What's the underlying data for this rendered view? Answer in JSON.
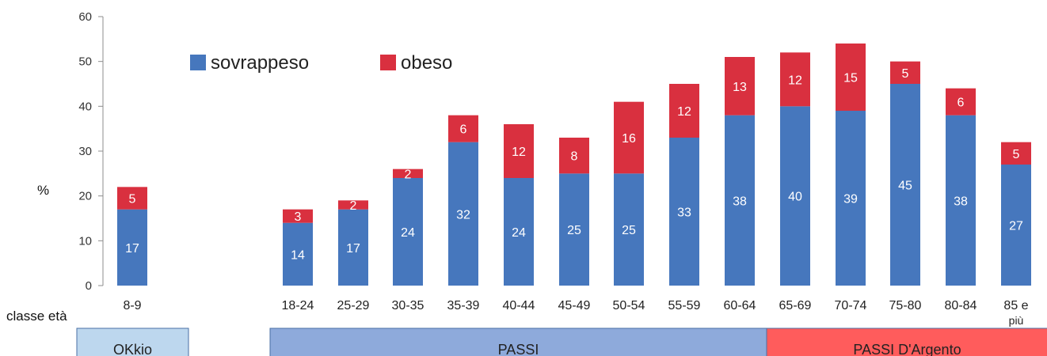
{
  "chart_data": {
    "type": "bar",
    "stacked": true,
    "title": "",
    "ylabel": "%",
    "xlabel": "classe età",
    "ylim": [
      0,
      60
    ],
    "yticks": [
      0,
      10,
      20,
      30,
      40,
      50,
      60
    ],
    "grid": false,
    "legend_position": "top-left",
    "categories": [
      "8-9",
      "18-24",
      "25-29",
      "30-35",
      "35-39",
      "40-44",
      "45-49",
      "50-54",
      "55-59",
      "60-64",
      "65-69",
      "70-74",
      "75-80",
      "80-84",
      "85 e più"
    ],
    "category_lines": [
      [
        "8-9"
      ],
      [
        "18-24"
      ],
      [
        "25-29"
      ],
      [
        "30-35"
      ],
      [
        "35-39"
      ],
      [
        "40-44"
      ],
      [
        "45-49"
      ],
      [
        "50-54"
      ],
      [
        "55-59"
      ],
      [
        "60-64"
      ],
      [
        "65-69"
      ],
      [
        "70-74"
      ],
      [
        "75-80"
      ],
      [
        "80-84"
      ],
      [
        "85 e",
        "più"
      ]
    ],
    "series": [
      {
        "name": "sovrappeso",
        "color": "#4677BD",
        "values": [
          17,
          14,
          17,
          24,
          32,
          24,
          25,
          25,
          33,
          38,
          40,
          39,
          45,
          38,
          27
        ]
      },
      {
        "name": "obeso",
        "color": "#D9303F",
        "values": [
          5,
          3,
          2,
          2,
          6,
          12,
          8,
          16,
          12,
          13,
          12,
          15,
          5,
          6,
          5
        ]
      }
    ],
    "groups": [
      {
        "label": "OKkio",
        "from": "8-9",
        "to": "8-9",
        "color": "#BDD7EE"
      },
      {
        "label": "PASSI",
        "from": "18-24",
        "to": "60-64",
        "color": "#8EAADB"
      },
      {
        "label": "PASSI D'Argento",
        "from": "65-69",
        "to": "85 e più",
        "color": "#FF5C5C"
      }
    ]
  }
}
